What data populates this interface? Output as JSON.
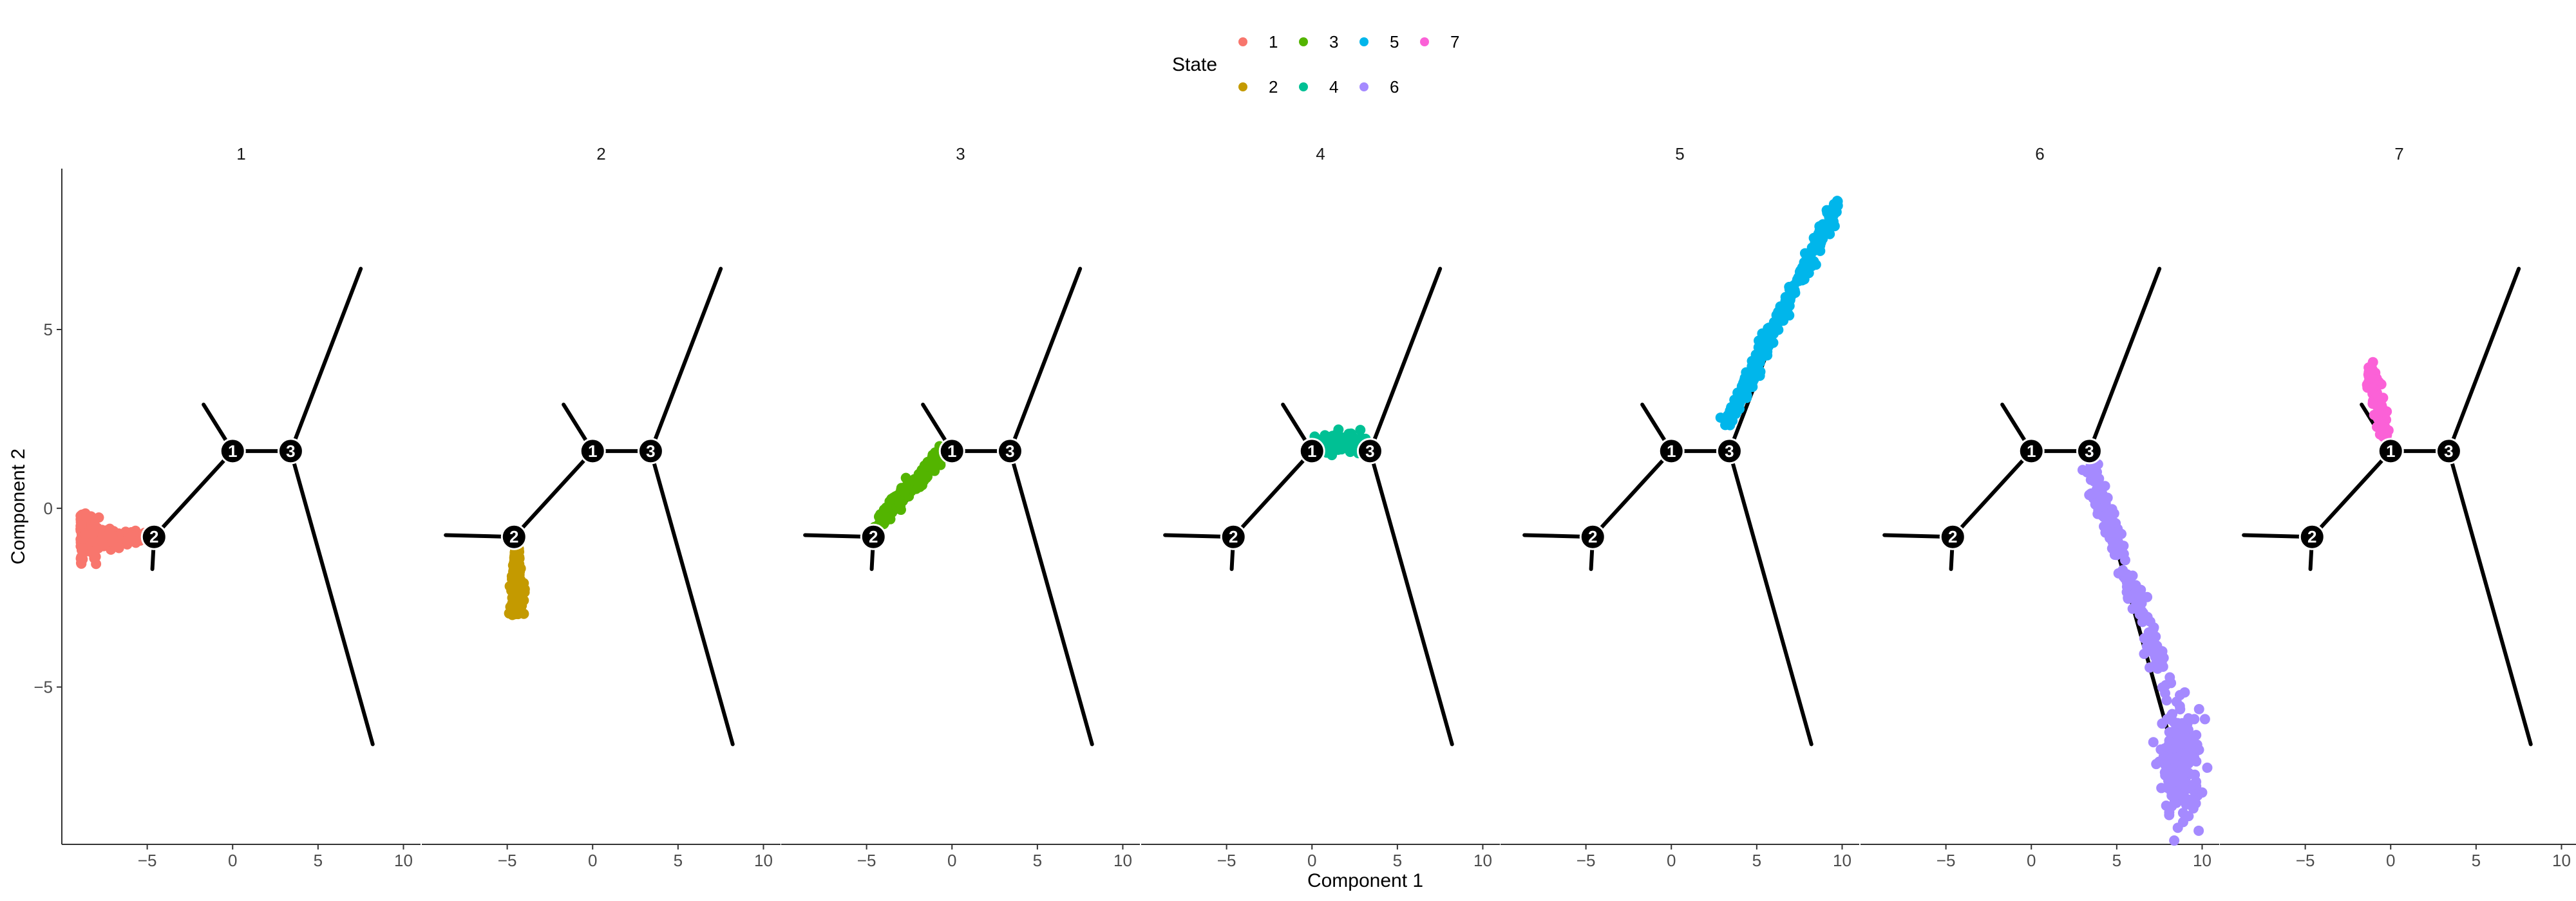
{
  "chart_data": {
    "type": "scatter",
    "facet_by": "State",
    "facets": [
      "1",
      "2",
      "3",
      "4",
      "5",
      "6",
      "7"
    ],
    "xlabel": "Component 1",
    "ylabel": "Component 2",
    "xlim": [
      -10,
      11
    ],
    "ylim": [
      -9.4,
      9.5
    ],
    "xticks": [
      -5,
      0,
      5,
      10
    ],
    "xtick_labels": [
      "−5",
      "0",
      "5",
      "10"
    ],
    "yticks": [
      -5,
      0,
      5
    ],
    "ytick_labels": [
      "−5",
      "0",
      "5"
    ],
    "grid": false,
    "legend": {
      "title": "State",
      "position": "top",
      "entries": [
        {
          "label": "1",
          "color": "#F8766D"
        },
        {
          "label": "2",
          "color": "#C49A00"
        },
        {
          "label": "3",
          "color": "#53B400"
        },
        {
          "label": "4",
          "color": "#00C094"
        },
        {
          "label": "5",
          "color": "#00B6EB"
        },
        {
          "label": "6",
          "color": "#A58AFF"
        },
        {
          "label": "7",
          "color": "#FB61D7"
        }
      ]
    },
    "trajectory": {
      "segments": [
        [
          [
            -4.6,
            -0.8
          ],
          [
            0,
            1.6
          ]
        ],
        [
          [
            0,
            1.6
          ],
          [
            3.4,
            1.6
          ]
        ],
        [
          [
            3.4,
            1.6
          ],
          [
            7.5,
            6.7
          ]
        ],
        [
          [
            3.4,
            1.6
          ],
          [
            8.2,
            -6.6
          ]
        ],
        [
          [
            -4.6,
            -0.8
          ],
          [
            -8.6,
            -0.75
          ]
        ],
        [
          [
            -4.6,
            -0.8
          ],
          [
            -4.7,
            -1.7
          ]
        ],
        [
          [
            0,
            1.6
          ],
          [
            -1.7,
            2.9
          ]
        ]
      ],
      "branch_nodes": [
        {
          "label": "1",
          "x": 0,
          "y": 1.6
        },
        {
          "label": "2",
          "x": -4.6,
          "y": -0.8
        },
        {
          "label": "3",
          "x": 3.4,
          "y": 1.6
        }
      ]
    },
    "series": [
      {
        "name": "1",
        "shape": "horizontal cluster",
        "x_range": [
          -8.9,
          -4.6
        ],
        "y_center": -0.8,
        "point_count": 260
      },
      {
        "name": "2",
        "shape": "vertical cluster",
        "x_range": [
          -5.0,
          -3.9
        ],
        "y_range": [
          -3.0,
          -1.1
        ],
        "point_count": 200
      },
      {
        "name": "3",
        "shape": "diagonal band",
        "from": [
          -4.3,
          -0.4
        ],
        "to": [
          -0.5,
          1.6
        ],
        "point_count": 180
      },
      {
        "name": "4",
        "shape": "short band",
        "from": [
          0.3,
          1.8
        ],
        "to": [
          3.1,
          1.8
        ],
        "point_count": 120
      },
      {
        "name": "5",
        "shape": "diagonal band",
        "from": [
          3.2,
          2.3
        ],
        "to": [
          9.7,
          8.5
        ],
        "point_count": 300
      },
      {
        "name": "6",
        "shape": "band then cluster",
        "from": [
          3.4,
          1.2
        ],
        "to": [
          8.0,
          -5.0
        ],
        "cluster_center": [
          8.8,
          -7.2
        ],
        "point_count": 380
      },
      {
        "name": "7",
        "shape": "short band",
        "from": [
          -1.2,
          3.9
        ],
        "to": [
          -0.3,
          2.0
        ],
        "point_count": 130
      }
    ]
  }
}
